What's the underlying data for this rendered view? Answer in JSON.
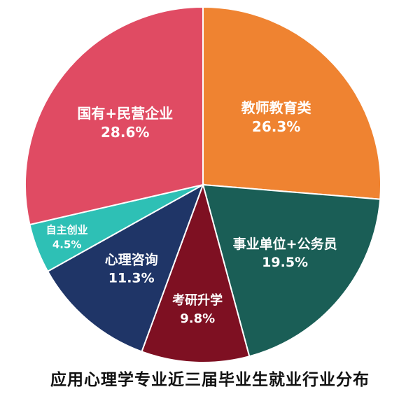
{
  "chart_data": {
    "type": "pie",
    "title": "应用心理学专业近三届毕业生就业行业分布",
    "slices": [
      {
        "label": "教师教育类",
        "value": 26.3,
        "value_label": "26.3%",
        "color": "#EF8331"
      },
      {
        "label": "事业单位+公务员",
        "value": 19.5,
        "value_label": "19.5%",
        "color": "#1A5E56"
      },
      {
        "label": "考研升学",
        "value": 9.8,
        "value_label": "9.8%",
        "color": "#7E1022"
      },
      {
        "label": "心理咨询",
        "value": 11.3,
        "value_label": "11.3%",
        "color": "#1F3567"
      },
      {
        "label": "自主创业",
        "value": 4.5,
        "value_label": "4.5%",
        "color": "#2EC0B5"
      },
      {
        "label": "国有+民营企业",
        "value": 28.6,
        "value_label": "28.6%",
        "color": "#E04B63"
      }
    ],
    "start_angle": "top",
    "direction": "clockwise",
    "legend": "none"
  }
}
